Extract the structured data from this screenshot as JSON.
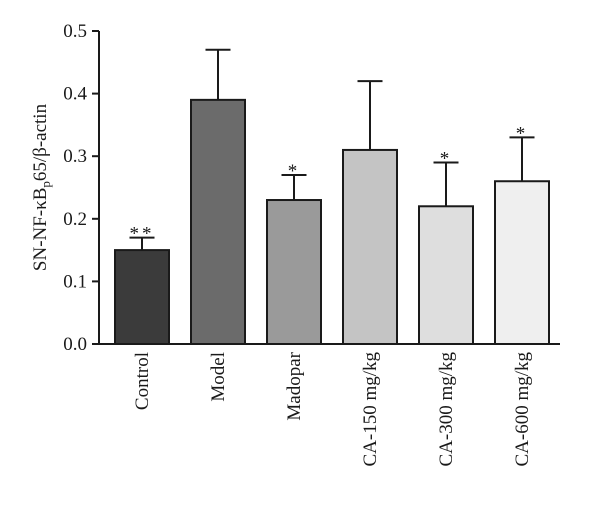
{
  "chart_data": {
    "type": "bar",
    "title": "",
    "ylabel": {
      "parts": [
        {
          "text": "SN-NF-κB",
          "sub": false
        },
        {
          "text": "p",
          "sub": true
        },
        {
          "text": "65/β-actin",
          "sub": false
        }
      ]
    },
    "xlabel": "",
    "ylim": [
      0,
      0.5
    ],
    "yticks": [
      0.0,
      0.1,
      0.2,
      0.3,
      0.4,
      0.5
    ],
    "ytick_labels": [
      "0.0",
      "0.1",
      "0.2",
      "0.3",
      "0.4",
      "0.5"
    ],
    "categories": [
      "Control",
      "Model",
      "Madopar",
      "CA-150 mg/kg",
      "CA-300 mg/kg",
      "CA-600 mg/kg"
    ],
    "values": [
      0.15,
      0.39,
      0.23,
      0.31,
      0.22,
      0.26
    ],
    "errors": [
      0.02,
      0.08,
      0.04,
      0.11,
      0.07,
      0.07
    ],
    "significance": [
      "**",
      "",
      "*",
      "",
      "*",
      "*"
    ],
    "bar_colors": [
      "#3b3b3b",
      "#6b6b6b",
      "#9a9a9a",
      "#c4c4c4",
      "#dedede",
      "#efefef"
    ],
    "grid": false,
    "legend": false
  }
}
